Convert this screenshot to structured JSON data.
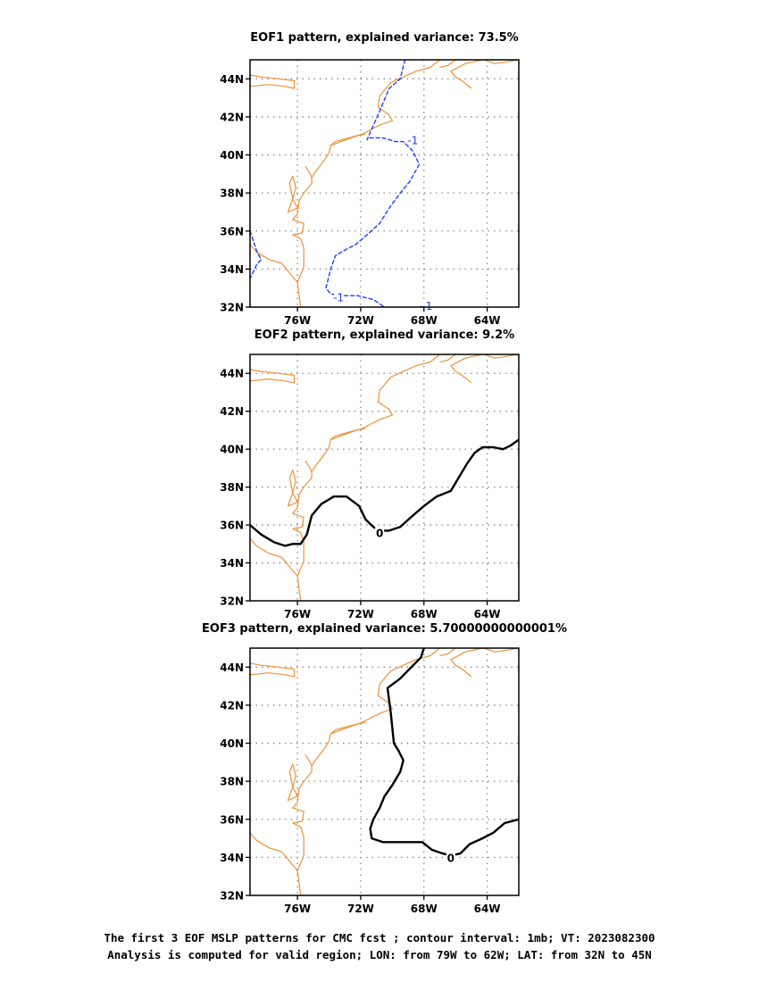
{
  "chart_data": [
    {
      "type": "contour-map",
      "title": "EOF1 pattern, explained variance: 73.5%",
      "x_ticks": [
        "76W",
        "72W",
        "68W",
        "64W"
      ],
      "y_ticks": [
        "32N",
        "34N",
        "36N",
        "38N",
        "40N",
        "42N",
        "44N"
      ],
      "xlim": [
        -79,
        -62
      ],
      "ylim": [
        32,
        45
      ],
      "grid": true,
      "contour_color": "#1f3fff",
      "contour_style": "dashed",
      "contour_labels": [
        "-1",
        "-1",
        "-1"
      ],
      "contours": [
        {
          "level": -1,
          "points": [
            [
              -69.2,
              45
            ],
            [
              -69.5,
              44
            ],
            [
              -70.2,
              43.5
            ],
            [
              -70.8,
              42.3
            ],
            [
              -71.6,
              40.8
            ],
            [
              -71.5,
              40.9
            ],
            [
              -70.6,
              40.9
            ],
            [
              -69.8,
              40.7
            ],
            [
              -69.3,
              40.7
            ],
            [
              -68.7,
              40.2
            ],
            [
              -68.3,
              39.5
            ],
            [
              -68.9,
              38.6
            ],
            [
              -69.5,
              38.0
            ],
            [
              -70.2,
              37.2
            ],
            [
              -70.8,
              36.4
            ],
            [
              -71.6,
              35.8
            ],
            [
              -72.3,
              35.3
            ],
            [
              -73.0,
              35.0
            ],
            [
              -73.6,
              34.7
            ],
            [
              -73.9,
              34.0
            ],
            [
              -74.2,
              33.0
            ],
            [
              -73.9,
              32.7
            ],
            [
              -73.3,
              32.6
            ],
            [
              -72.2,
              32.6
            ],
            [
              -71.2,
              32.4
            ],
            [
              -70.5,
              32.0
            ]
          ]
        },
        {
          "level": -1,
          "points": [
            [
              -68.3,
              32.0
            ],
            [
              -67.9,
              32.05
            ]
          ]
        },
        {
          "level": -1,
          "points": [
            [
              -79.0,
              36.0
            ],
            [
              -78.6,
              35.0
            ],
            [
              -78.3,
              34.5
            ],
            [
              -78.6,
              34.2
            ],
            [
              -79.0,
              33.5
            ]
          ]
        }
      ]
    },
    {
      "type": "contour-map",
      "title": "EOF2 pattern, explained variance: 9.2%",
      "x_ticks": [
        "76W",
        "72W",
        "68W",
        "64W"
      ],
      "y_ticks": [
        "32N",
        "34N",
        "36N",
        "38N",
        "40N",
        "42N",
        "44N"
      ],
      "xlim": [
        -79,
        -62
      ],
      "ylim": [
        32,
        45
      ],
      "grid": true,
      "contour_color": "#000000",
      "contour_style": "solid",
      "contour_labels": [
        "0"
      ],
      "contours": [
        {
          "level": 0,
          "points": [
            [
              -79.0,
              36.0
            ],
            [
              -78.3,
              35.5
            ],
            [
              -77.5,
              35.1
            ],
            [
              -76.8,
              34.9
            ],
            [
              -76.3,
              35.0
            ],
            [
              -75.8,
              35.0
            ],
            [
              -75.4,
              35.5
            ],
            [
              -75.1,
              36.5
            ],
            [
              -74.5,
              37.1
            ],
            [
              -73.7,
              37.5
            ],
            [
              -72.9,
              37.5
            ],
            [
              -72.1,
              37.0
            ],
            [
              -71.7,
              36.3
            ],
            [
              -71.2,
              35.9
            ],
            [
              -70.8,
              35.7
            ],
            [
              -70.2,
              35.7
            ],
            [
              -69.5,
              35.9
            ],
            [
              -68.7,
              36.5
            ],
            [
              -68.0,
              37.0
            ],
            [
              -67.2,
              37.5
            ],
            [
              -66.3,
              37.8
            ],
            [
              -65.8,
              38.5
            ],
            [
              -65.3,
              39.2
            ],
            [
              -64.8,
              39.8
            ],
            [
              -64.3,
              40.1
            ],
            [
              -63.6,
              40.1
            ],
            [
              -63.0,
              40.0
            ],
            [
              -62.5,
              40.2
            ],
            [
              -62.0,
              40.5
            ]
          ]
        }
      ]
    },
    {
      "type": "contour-map",
      "title": "EOF3 pattern, explained variance: 5.70000000000001%",
      "x_ticks": [
        "76W",
        "72W",
        "68W",
        "64W"
      ],
      "y_ticks": [
        "32N",
        "34N",
        "36N",
        "38N",
        "40N",
        "42N",
        "44N"
      ],
      "xlim": [
        -79,
        -62
      ],
      "ylim": [
        32,
        45
      ],
      "grid": true,
      "contour_color": "#000000",
      "contour_style": "solid",
      "contour_labels": [
        "0"
      ],
      "contours": [
        {
          "level": 0,
          "points": [
            [
              -68.0,
              45.0
            ],
            [
              -68.2,
              44.5
            ],
            [
              -68.8,
              44.0
            ],
            [
              -69.5,
              43.4
            ],
            [
              -70.3,
              42.9
            ],
            [
              -70.1,
              41.6
            ],
            [
              -69.9,
              40.0
            ],
            [
              -69.6,
              39.6
            ],
            [
              -69.3,
              39.1
            ],
            [
              -69.5,
              38.5
            ],
            [
              -70.0,
              37.8
            ],
            [
              -70.5,
              37.2
            ],
            [
              -70.8,
              36.6
            ],
            [
              -71.2,
              36.0
            ],
            [
              -71.4,
              35.5
            ],
            [
              -71.3,
              35.0
            ],
            [
              -70.6,
              34.8
            ],
            [
              -69.7,
              34.8
            ],
            [
              -68.7,
              34.8
            ],
            [
              -68.1,
              34.8
            ],
            [
              -67.5,
              34.4
            ],
            [
              -66.8,
              34.2
            ],
            [
              -66.3,
              34.1
            ],
            [
              -65.7,
              34.2
            ],
            [
              -65.1,
              34.7
            ],
            [
              -64.3,
              35.0
            ],
            [
              -63.6,
              35.3
            ],
            [
              -62.9,
              35.8
            ],
            [
              -62.0,
              36.0
            ]
          ]
        }
      ]
    }
  ],
  "coastline": {
    "color": "#f0913a",
    "segments": [
      [
        [
          -79.0,
          43.6
        ],
        [
          -77.8,
          43.7
        ],
        [
          -76.8,
          43.6
        ],
        [
          -76.2,
          43.5
        ],
        [
          -76.2,
          43.9
        ],
        [
          -77.2,
          44.0
        ],
        [
          -78.3,
          44.1
        ],
        [
          -79.0,
          44.2
        ]
      ],
      [
        [
          -75.8,
          32.0
        ],
        [
          -76.0,
          33.3
        ],
        [
          -77.0,
          34.3
        ],
        [
          -77.8,
          34.5
        ],
        [
          -78.6,
          34.9
        ],
        [
          -79.0,
          35.3
        ]
      ],
      [
        [
          -76.0,
          33.3
        ],
        [
          -75.6,
          34.1
        ],
        [
          -75.6,
          35.1
        ],
        [
          -75.8,
          35.6
        ],
        [
          -76.3,
          35.8
        ],
        [
          -75.7,
          35.9
        ],
        [
          -75.6,
          36.4
        ],
        [
          -76.3,
          36.6
        ],
        [
          -76.0,
          36.9
        ],
        [
          -75.9,
          37.6
        ],
        [
          -75.6,
          38.0
        ],
        [
          -75.1,
          38.5
        ],
        [
          -75.1,
          38.8
        ],
        [
          -74.8,
          39.2
        ],
        [
          -74.4,
          39.6
        ],
        [
          -74.0,
          40.1
        ],
        [
          -73.9,
          40.5
        ],
        [
          -72.6,
          40.9
        ],
        [
          -71.9,
          41.1
        ],
        [
          -71.2,
          41.4
        ],
        [
          -70.7,
          41.6
        ],
        [
          -70.0,
          41.8
        ],
        [
          -70.2,
          42.1
        ],
        [
          -70.9,
          42.5
        ],
        [
          -70.8,
          43.1
        ],
        [
          -70.1,
          43.8
        ],
        [
          -69.3,
          44.1
        ],
        [
          -68.5,
          44.4
        ],
        [
          -67.6,
          44.6
        ],
        [
          -67.0,
          45.0
        ]
      ],
      [
        [
          -73.9,
          40.5
        ],
        [
          -73.6,
          40.7
        ],
        [
          -72.3,
          41.0
        ],
        [
          -71.7,
          41.1
        ]
      ],
      [
        [
          -76.3,
          38.9
        ],
        [
          -76.1,
          38.3
        ],
        [
          -76.3,
          37.7
        ],
        [
          -76.0,
          37.2
        ],
        [
          -76.6,
          37.0
        ],
        [
          -76.3,
          37.7
        ],
        [
          -76.5,
          38.5
        ],
        [
          -76.3,
          38.9
        ]
      ],
      [
        [
          -75.5,
          39.4
        ],
        [
          -75.2,
          39.0
        ],
        [
          -75.1,
          38.8
        ]
      ],
      [
        [
          -66.0,
          45.0
        ],
        [
          -66.5,
          44.7
        ],
        [
          -67.0,
          44.6
        ]
      ],
      [
        [
          -65.0,
          43.5
        ],
        [
          -65.6,
          43.9
        ],
        [
          -66.0,
          44.1
        ],
        [
          -66.3,
          44.4
        ],
        [
          -65.4,
          44.8
        ],
        [
          -64.3,
          45.0
        ]
      ],
      [
        [
          -64.2,
          45.0
        ],
        [
          -63.5,
          44.8
        ],
        [
          -62.0,
          45.0
        ]
      ]
    ]
  },
  "footer": {
    "line1": "The first 3 EOF MSLP patterns for CMC fcst ; contour interval: 1mb; VT: 2023082300",
    "line2": "Analysis is computed for valid region; LON: from 79W to 62W; LAT: from 32N to 45N"
  }
}
